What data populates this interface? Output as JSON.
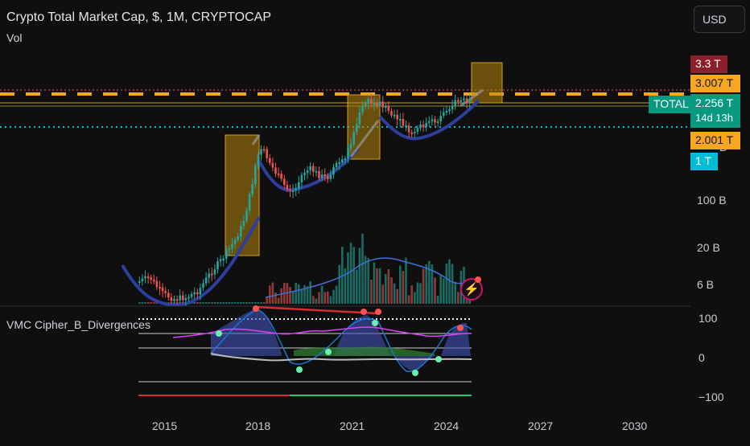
{
  "header": {
    "title": "Crypto Total Market Cap, $, 1M, CRYPTOCAP",
    "volume_label": "Vol",
    "currency": "USD"
  },
  "indicator": {
    "name": "VMC Cipher_B_Divergences"
  },
  "price_axis": {
    "ticks": [
      "100 B",
      "20 B",
      "6 B"
    ],
    "partial_tick": "B"
  },
  "badges": {
    "upper_level": "3.3 T",
    "ath_level": "3.007 T",
    "symbol": "TOTAL",
    "last_price": "2.256 T",
    "countdown": "14d 13h",
    "support_level": "2.001 T",
    "cyan_level": "1 T"
  },
  "oscillator_axis": {
    "ticks": [
      "100",
      "0",
      "−100"
    ]
  },
  "time_axis": {
    "years": [
      "2015",
      "2018",
      "2021",
      "2024",
      "2027",
      "2030"
    ]
  },
  "colors": {
    "background": "#0f0f10",
    "bull": "#26a69a",
    "bear": "#ef5350",
    "orange_dash": "#f5a623",
    "cyan_dot": "#00bcd4",
    "pattern_curve": "#2c3e9e",
    "highlight_box": "#b8860b"
  },
  "icons": {
    "alert": "lightning-alert-icon"
  }
}
